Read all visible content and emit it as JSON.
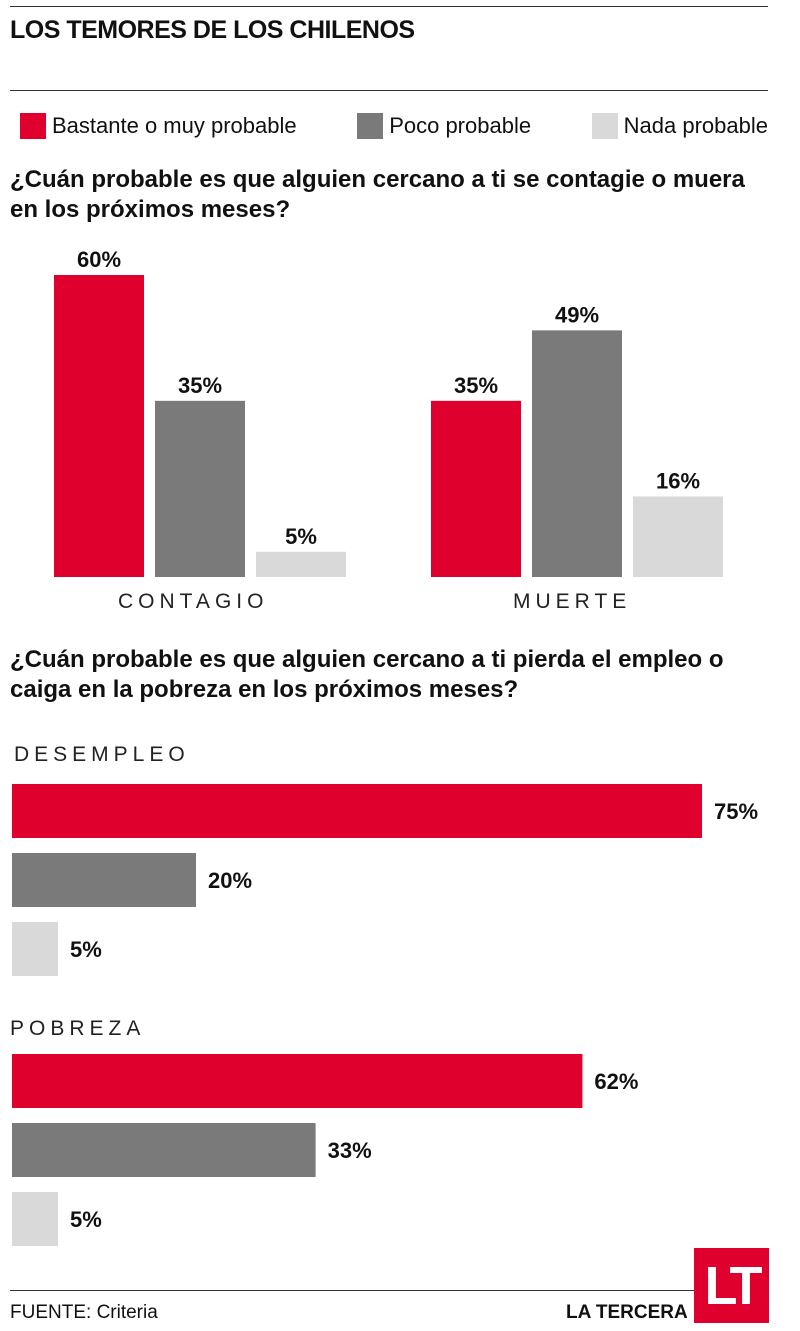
{
  "title": "LOS TEMORES DE LOS CHILENOS",
  "legend": [
    {
      "label": "Bastante o muy probable",
      "color": "#e0002d"
    },
    {
      "label": "Poco probable",
      "color": "#7a7a7a"
    },
    {
      "label": "Nada probable",
      "color": "#d9d9d9"
    }
  ],
  "question1": "¿Cuán probable es que alguien cercano a ti se contagie o muera en los próximos meses?",
  "question2": "¿Cuán probable es que alguien cercano a ti pierda el empleo o caiga en la pobreza en los próximos meses?",
  "footer": {
    "source_label": "FUENTE:",
    "source": "Criteria",
    "brand": "LA TERCERA",
    "logo": "LT"
  },
  "chart_data": [
    {
      "type": "bar",
      "orientation": "vertical",
      "categories": [
        "CONTAGIO",
        "MUERTE"
      ],
      "series": [
        {
          "name": "Bastante o muy probable",
          "values": [
            60,
            35
          ],
          "labels": [
            "60%",
            "35%"
          ]
        },
        {
          "name": "Poco probable",
          "values": [
            35,
            49
          ],
          "labels": [
            "35%",
            "49%"
          ]
        },
        {
          "name": "Nada probable",
          "values": [
            5,
            16
          ],
          "labels": [
            "5%",
            "16%"
          ]
        }
      ],
      "unit": "%",
      "ylim": [
        0,
        60
      ],
      "grid": false
    },
    {
      "type": "bar",
      "orientation": "horizontal",
      "categories": [
        "DESEMPLEO",
        "POBREZA"
      ],
      "series": [
        {
          "name": "Bastante o muy probable",
          "values": [
            75,
            62
          ],
          "labels": [
            "75%",
            "62%"
          ]
        },
        {
          "name": "Poco probable",
          "values": [
            20,
            33
          ],
          "labels": [
            "20%",
            "33%"
          ]
        },
        {
          "name": "Nada probable",
          "values": [
            5,
            5
          ],
          "labels": [
            "5%",
            "5%"
          ]
        }
      ],
      "unit": "%",
      "xlim": [
        0,
        75
      ],
      "grid": false
    }
  ]
}
